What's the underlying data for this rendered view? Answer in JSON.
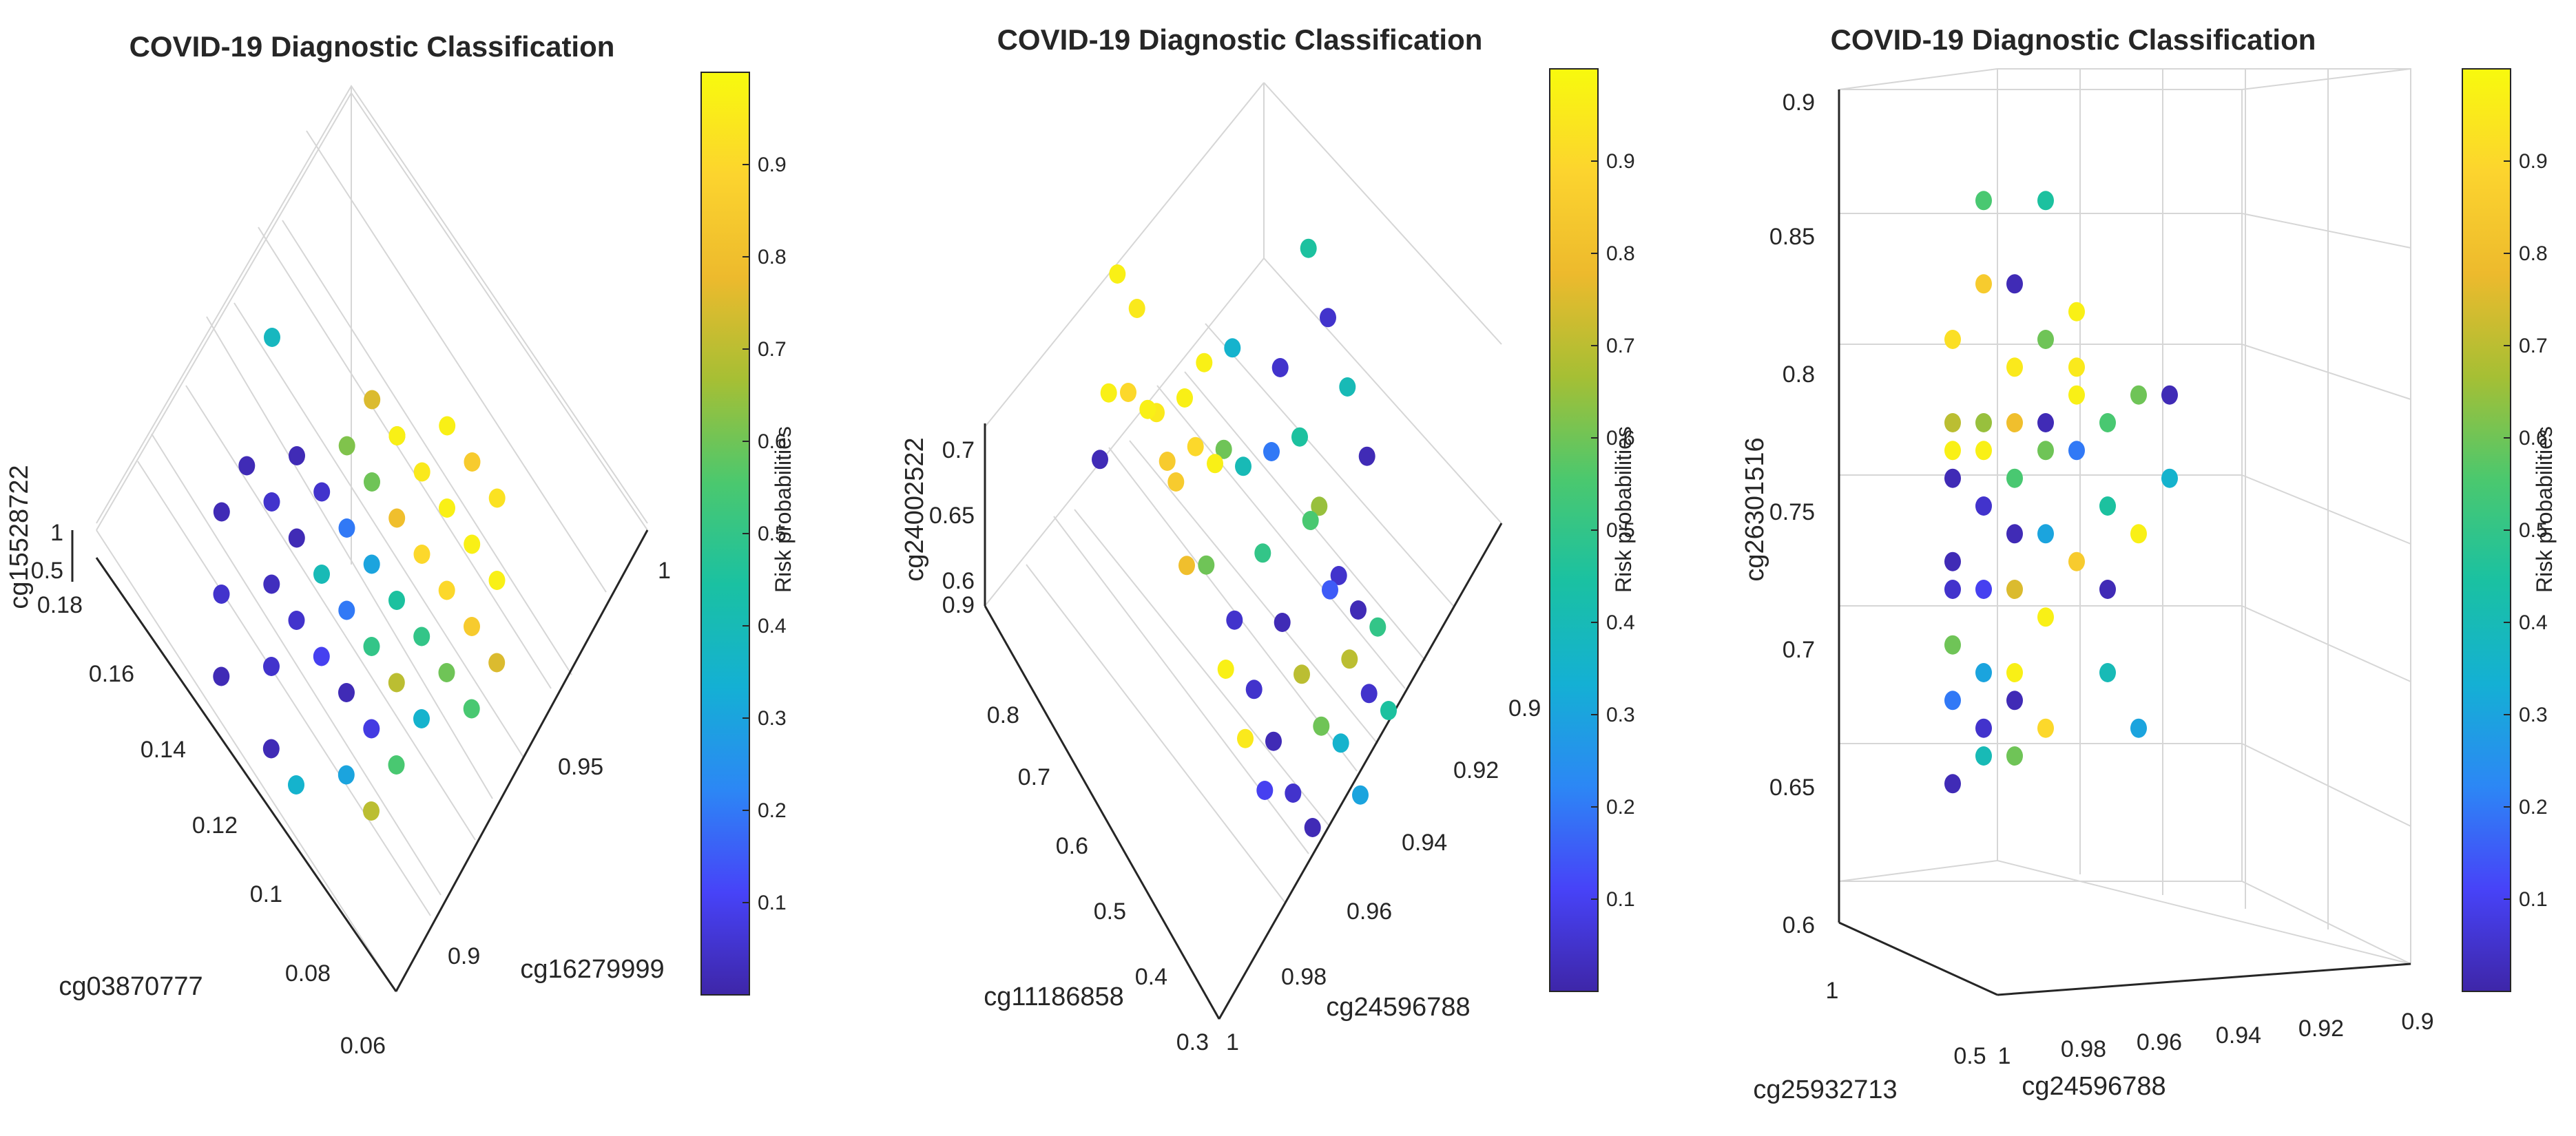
{
  "colorbar_stops": [
    "#3e26a8",
    "#4743f8",
    "#2c87f5",
    "#14b0d4",
    "#1ac1a2",
    "#4bc86e",
    "#a6bf34",
    "#edba2d",
    "#fcd42e",
    "#f8fa0d"
  ],
  "chart_data": [
    {
      "type": "scatter3d",
      "title": "COVID-19 Diagnostic Classification",
      "xlabel": "cg03870777",
      "ylabel": "cg16279999",
      "zlabel": "cg15528722",
      "xticks": [
        "0.18",
        "0.16",
        "0.14",
        "0.12",
        "0.1",
        "0.08",
        "0.06"
      ],
      "yticks": [
        "1",
        "0.95",
        "0.9"
      ],
      "zticks": [
        "1",
        "0.5"
      ],
      "colorbar": {
        "label": "Risk probabilities",
        "ticks": [
          "0.9",
          "0.8",
          "0.7",
          "0.6",
          "0.5",
          "0.4",
          "0.3",
          "0.2",
          "0.1"
        ]
      },
      "points": [
        [
          0.16,
          0.95,
          0.6,
          0.38
        ],
        [
          0.15,
          0.93,
          0.6,
          0.02
        ],
        [
          0.14,
          0.93,
          0.6,
          0.05
        ],
        [
          0.14,
          0.94,
          0.6,
          0.02
        ],
        [
          0.13,
          0.94,
          0.6,
          0.05
        ],
        [
          0.13,
          0.93,
          0.6,
          0.02
        ],
        [
          0.12,
          0.94,
          0.6,
          0.2
        ],
        [
          0.12,
          0.95,
          0.6,
          0.6
        ],
        [
          0.12,
          0.96,
          0.6,
          0.72
        ],
        [
          0.11,
          0.94,
          0.6,
          0.3
        ],
        [
          0.11,
          0.95,
          0.6,
          0.8
        ],
        [
          0.11,
          0.96,
          0.6,
          0.95
        ],
        [
          0.1,
          0.95,
          0.6,
          0.9
        ],
        [
          0.1,
          0.96,
          0.6,
          0.97
        ],
        [
          0.1,
          0.97,
          0.6,
          0.85
        ],
        [
          0.1,
          0.94,
          0.6,
          0.45
        ],
        [
          0.09,
          0.95,
          0.6,
          0.9
        ],
        [
          0.09,
          0.96,
          0.6,
          0.97
        ],
        [
          0.09,
          0.97,
          0.6,
          0.93
        ],
        [
          0.09,
          0.94,
          0.6,
          0.5
        ],
        [
          0.08,
          0.96,
          0.6,
          0.97
        ],
        [
          0.08,
          0.95,
          0.6,
          0.85
        ],
        [
          0.08,
          0.94,
          0.6,
          0.6
        ],
        [
          0.08,
          0.93,
          0.6,
          0.35
        ],
        [
          0.07,
          0.95,
          0.6,
          0.75
        ],
        [
          0.07,
          0.94,
          0.6,
          0.55
        ],
        [
          0.12,
          0.92,
          0.6,
          0.05
        ],
        [
          0.11,
          0.92,
          0.6,
          0.1
        ],
        [
          0.1,
          0.92,
          0.6,
          0.02
        ],
        [
          0.09,
          0.92,
          0.6,
          0.08
        ],
        [
          0.13,
          0.92,
          0.6,
          0.03
        ],
        [
          0.11,
          0.93,
          0.6,
          0.2
        ],
        [
          0.1,
          0.93,
          0.6,
          0.5
        ],
        [
          0.09,
          0.93,
          0.6,
          0.7
        ],
        [
          0.15,
          0.92,
          0.6,
          0.02
        ],
        [
          0.14,
          0.91,
          0.6,
          0.05
        ],
        [
          0.12,
          0.91,
          0.6,
          0.05
        ],
        [
          0.13,
          0.9,
          0.6,
          0.02
        ],
        [
          0.11,
          0.9,
          0.6,
          0.02
        ],
        [
          0.1,
          0.9,
          0.6,
          0.35
        ],
        [
          0.09,
          0.91,
          0.6,
          0.3
        ],
        [
          0.08,
          0.92,
          0.6,
          0.55
        ],
        [
          0.08,
          0.91,
          0.6,
          0.7
        ],
        [
          0.12,
          0.93,
          0.6,
          0.4
        ],
        [
          0.12,
          0.96,
          0.6,
          0.97
        ],
        [
          0.11,
          0.97,
          0.6,
          0.97
        ],
        [
          0.13,
          0.95,
          0.6,
          0.62
        ],
        [
          0.13,
          0.96,
          0.6,
          0.75
        ]
      ]
    },
    {
      "type": "scatter3d",
      "title": "COVID-19 Diagnostic Classification",
      "xlabel": "cg11186858",
      "ylabel": "cg24596788",
      "zlabel": "cg24002522",
      "xticks": [
        "0.9",
        "0.8",
        "0.7",
        "0.6",
        "0.5",
        "0.4",
        "0.3"
      ],
      "yticks": [
        "1",
        "0.98",
        "0.96",
        "0.94",
        "0.92",
        "0.9"
      ],
      "zticks": [
        "0.7",
        "0.65",
        "0.6"
      ],
      "colorbar": {
        "label": "Risk probabilities",
        "ticks": [
          "0.9",
          "0.8",
          "0.7",
          "0.6",
          "0.5",
          "0.4",
          "0.3",
          "0.2",
          "0.1"
        ]
      },
      "points": [
        [
          0.75,
          0.96,
          0.68,
          0.95
        ],
        [
          0.7,
          0.95,
          0.7,
          0.97
        ],
        [
          0.7,
          0.96,
          0.66,
          0.85
        ],
        [
          0.65,
          0.96,
          0.7,
          0.9
        ],
        [
          0.65,
          0.95,
          0.67,
          0.6
        ],
        [
          0.6,
          0.95,
          0.68,
          0.4
        ],
        [
          0.6,
          0.94,
          0.66,
          0.2
        ],
        [
          0.55,
          0.95,
          0.65,
          0.5
        ],
        [
          0.55,
          0.96,
          0.64,
          0.05
        ],
        [
          0.5,
          0.95,
          0.63,
          0.02
        ],
        [
          0.5,
          0.96,
          0.62,
          0.05
        ],
        [
          0.45,
          0.96,
          0.61,
          0.02
        ],
        [
          0.45,
          0.95,
          0.62,
          0.7
        ],
        [
          0.4,
          0.95,
          0.61,
          0.6
        ],
        [
          0.4,
          0.96,
          0.6,
          0.05
        ],
        [
          0.35,
          0.96,
          0.6,
          0.02
        ],
        [
          0.35,
          0.95,
          0.62,
          0.35
        ],
        [
          0.3,
          0.95,
          0.61,
          0.3
        ],
        [
          0.3,
          0.94,
          0.63,
          0.45
        ],
        [
          0.8,
          0.96,
          0.72,
          0.95
        ],
        [
          0.8,
          0.97,
          0.7,
          0.97
        ],
        [
          0.75,
          0.97,
          0.72,
          0.9
        ],
        [
          0.7,
          0.97,
          0.73,
          0.97
        ],
        [
          0.65,
          0.97,
          0.72,
          0.85
        ],
        [
          0.6,
          0.96,
          0.71,
          0.97
        ],
        [
          0.55,
          0.97,
          0.7,
          0.6
        ],
        [
          0.5,
          0.97,
          0.66,
          0.97
        ],
        [
          0.45,
          0.97,
          0.64,
          0.95
        ],
        [
          0.4,
          0.97,
          0.63,
          0.1
        ],
        [
          0.7,
          0.94,
          0.68,
          0.35
        ],
        [
          0.65,
          0.93,
          0.66,
          0.05
        ],
        [
          0.6,
          0.93,
          0.64,
          0.45
        ],
        [
          0.55,
          0.93,
          0.62,
          0.65
        ],
        [
          0.5,
          0.93,
          0.6,
          0.05
        ],
        [
          0.45,
          0.93,
          0.6,
          0.02
        ],
        [
          0.4,
          0.93,
          0.61,
          0.5
        ],
        [
          0.55,
          0.92,
          0.66,
          0.4
        ],
        [
          0.6,
          0.92,
          0.68,
          0.05
        ],
        [
          0.65,
          0.92,
          0.7,
          0.45
        ],
        [
          0.5,
          0.92,
          0.64,
          0.02
        ],
        [
          0.75,
          0.95,
          0.66,
          0.97
        ],
        [
          0.85,
          0.96,
          0.72,
          0.97
        ],
        [
          0.75,
          0.98,
          0.71,
          0.02
        ],
        [
          0.6,
          0.97,
          0.68,
          0.8
        ],
        [
          0.5,
          0.94,
          0.66,
          0.55
        ],
        [
          0.45,
          0.94,
          0.64,
          0.15
        ],
        [
          0.35,
          0.94,
          0.62,
          0.05
        ],
        [
          0.4,
          0.94,
          0.62,
          0.7
        ]
      ]
    },
    {
      "type": "scatter3d",
      "title": "COVID-19 Diagnostic Classification",
      "xlabel": "cg25932713",
      "ylabel": "cg24596788",
      "zlabel": "cg26301516",
      "xticks": [
        "1",
        "0.5"
      ],
      "yticks": [
        "1",
        "0.98",
        "0.96",
        "0.94",
        "0.92",
        "0.9"
      ],
      "zticks": [
        "0.9",
        "0.85",
        "0.8",
        "0.75",
        "0.7",
        "0.65",
        "0.6"
      ],
      "colorbar": {
        "label": "Risk probabilities",
        "ticks": [
          "0.9",
          "0.8",
          "0.7",
          "0.6",
          "0.5",
          "0.4",
          "0.3",
          "0.2",
          "0.1"
        ]
      },
      "points": [
        [
          0.8,
          0.99,
          0.81,
          0.92
        ],
        [
          0.8,
          0.98,
          0.83,
          0.85
        ],
        [
          0.8,
          0.97,
          0.8,
          0.95
        ],
        [
          0.8,
          0.99,
          0.78,
          0.7
        ],
        [
          0.8,
          0.98,
          0.77,
          0.97
        ],
        [
          0.8,
          0.97,
          0.76,
          0.55
        ],
        [
          0.8,
          0.99,
          0.76,
          0.02
        ],
        [
          0.8,
          0.98,
          0.75,
          0.05
        ],
        [
          0.8,
          0.97,
          0.74,
          0.02
        ],
        [
          0.8,
          0.96,
          0.77,
          0.6
        ],
        [
          0.8,
          0.95,
          0.79,
          0.97
        ],
        [
          0.8,
          0.96,
          0.74,
          0.3
        ],
        [
          0.8,
          0.99,
          0.73,
          0.02
        ],
        [
          0.8,
          0.98,
          0.72,
          0.1
        ],
        [
          0.8,
          0.97,
          0.72,
          0.75
        ],
        [
          0.8,
          0.96,
          0.71,
          0.97
        ],
        [
          0.8,
          0.99,
          0.7,
          0.6
        ],
        [
          0.8,
          0.98,
          0.69,
          0.3
        ],
        [
          0.8,
          0.97,
          0.68,
          0.02
        ],
        [
          0.8,
          0.99,
          0.68,
          0.2
        ],
        [
          0.8,
          0.98,
          0.67,
          0.05
        ],
        [
          0.8,
          0.97,
          0.69,
          0.97
        ],
        [
          0.8,
          0.95,
          0.73,
          0.85
        ],
        [
          0.8,
          0.94,
          0.75,
          0.45
        ],
        [
          0.8,
          0.93,
          0.79,
          0.6
        ],
        [
          0.8,
          0.93,
          0.74,
          0.97
        ],
        [
          0.8,
          0.92,
          0.76,
          0.35
        ],
        [
          0.8,
          0.92,
          0.79,
          0.02
        ],
        [
          0.8,
          0.96,
          0.81,
          0.6
        ],
        [
          0.8,
          0.95,
          0.82,
          0.97
        ],
        [
          0.8,
          0.98,
          0.86,
          0.55
        ],
        [
          0.8,
          0.96,
          0.86,
          0.45
        ],
        [
          0.8,
          0.97,
          0.83,
          0.02
        ],
        [
          0.8,
          0.96,
          0.78,
          0.02
        ],
        [
          0.8,
          0.95,
          0.77,
          0.2
        ],
        [
          0.8,
          0.94,
          0.72,
          0.02
        ],
        [
          0.8,
          0.94,
          0.69,
          0.4
        ],
        [
          0.8,
          0.93,
          0.67,
          0.3
        ],
        [
          0.8,
          0.99,
          0.65,
          0.02
        ],
        [
          0.8,
          0.98,
          0.66,
          0.4
        ],
        [
          0.8,
          0.97,
          0.66,
          0.6
        ],
        [
          0.8,
          0.99,
          0.77,
          0.97
        ],
        [
          0.8,
          0.98,
          0.78,
          0.65
        ],
        [
          0.8,
          0.97,
          0.78,
          0.8
        ],
        [
          0.8,
          0.95,
          0.8,
          0.95
        ],
        [
          0.8,
          0.94,
          0.78,
          0.55
        ],
        [
          0.8,
          0.96,
          0.67,
          0.9
        ],
        [
          0.8,
          0.99,
          0.72,
          0.05
        ]
      ]
    }
  ]
}
